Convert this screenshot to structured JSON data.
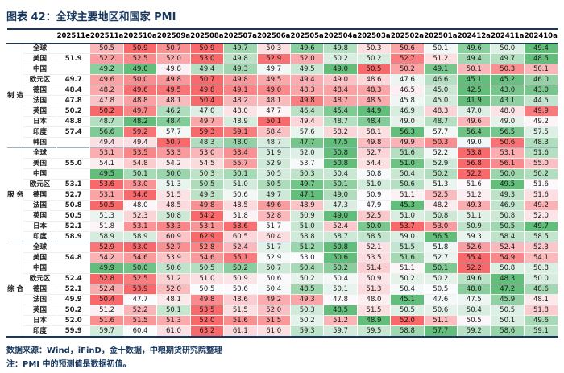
{
  "header": {
    "title": "图表 42：全球主要地区和国家 PMI"
  },
  "chart_data": {
    "type": "table",
    "title": "全球主要地区和国家 PMI",
    "legend": "heatmap per row: red = high PMI, green = low PMI, blue = flash/preliminary value",
    "columns": [
      "202511e",
      "202511a",
      "202510a",
      "202509a",
      "202508a",
      "202507a",
      "202506a",
      "202505a",
      "202504a",
      "202503a",
      "202502a",
      "202501a",
      "202412a",
      "202411a",
      "202410a"
    ],
    "color_scale": {
      "low": "#63BE7B",
      "mid": "#FCFCFF",
      "high": "#F8696B",
      "flash_text": "#2E74B5"
    },
    "sections": [
      {
        "label": "制造业",
        "rows": [
          {
            "name": "全球",
            "values": [
              null,
              50.5,
              50.9,
              50.7,
              50.9,
              49.7,
              50.3,
              49.6,
              49.8,
              50.3,
              50.6,
              50.1,
              49.6,
              50.0,
              49.4
            ]
          },
          {
            "name": "美国",
            "values": [
              51.9,
              52.2,
              52.5,
              52.0,
              53.0,
              49.8,
              52.9,
              52.0,
              50.2,
              50.2,
              52.7,
              51.2,
              49.4,
              49.7,
              48.5
            ]
          },
          {
            "name": "中国",
            "values": [
              null,
              49.2,
              49.0,
              49.8,
              49.4,
              49.3,
              49.7,
              49.5,
              49.0,
              50.5,
              50.2,
              49.1,
              50.1,
              50.3,
              50.1
            ]
          },
          {
            "name": "欧元区",
            "values": [
              49.7,
              49.6,
              50.0,
              49.8,
              50.7,
              49.8,
              49.5,
              49.4,
              49.0,
              48.6,
              47.6,
              46.6,
              45.1,
              45.2,
              46.0
            ]
          },
          {
            "name": "德国",
            "values": [
              48.4,
              48.2,
              49.6,
              49.5,
              49.8,
              49.1,
              49.0,
              48.3,
              48.4,
              48.3,
              46.5,
              45.0,
              42.5,
              43.0,
              43.0
            ]
          },
          {
            "name": "法国",
            "values": [
              47.8,
              47.8,
              48.8,
              48.1,
              50.4,
              48.2,
              48.1,
              49.8,
              48.7,
              48.5,
              45.8,
              45.0,
              41.9,
              43.1,
              44.5
            ]
          },
          {
            "name": "英国",
            "values": [
              50.2,
              50.2,
              49.7,
              46.2,
              47.0,
              48.0,
              47.7,
              46.4,
              45.4,
              44.9,
              46.9,
              48.3,
              47.0,
              48.0,
              49.9
            ]
          },
          {
            "name": "日本",
            "values": [
              48.8,
              48.7,
              48.2,
              48.4,
              49.7,
              48.9,
              50.1,
              49.4,
              48.7,
              48.4,
              49.0,
              48.7,
              49.6,
              49.0,
              49.2
            ]
          },
          {
            "name": "印度",
            "values": [
              57.4,
              56.6,
              59.2,
              57.7,
              59.3,
              59.1,
              58.4,
              57.6,
              58.2,
              58.1,
              56.3,
              57.7,
              56.4,
              56.5,
              57.5
            ]
          },
          {
            "name": "韩国",
            "values": [
              null,
              49.4,
              49.4,
              50.7,
              48.3,
              48.0,
              48.7,
              47.7,
              47.5,
              49.8,
              49.9,
              50.3,
              49.0,
              50.6,
              48.3
            ]
          }
        ]
      },
      {
        "label": "服务业",
        "rows": [
          {
            "name": "全球",
            "values": [
              null,
              53.1,
              53.5,
              53.3,
              53.0,
              53.4,
              51.9,
              52.0,
              50.8,
              52.7,
              51.6,
              52.2,
              53.8,
              53.1,
              51.6
            ]
          },
          {
            "name": "美国",
            "values": [
              55.0,
              54.1,
              54.8,
              54.2,
              54.5,
              55.7,
              52.9,
              53.7,
              50.8,
              54.4,
              51.0,
              52.9,
              56.8,
              56.1,
              55.0
            ]
          },
          {
            "name": "中国",
            "values": [
              null,
              49.5,
              50.1,
              50.0,
              50.3,
              50.1,
              50.5,
              50.3,
              50.4,
              50.8,
              50.4,
              50.2,
              52.2,
              50.0,
              50.2
            ]
          },
          {
            "name": "欧元区",
            "values": [
              53.1,
              53.6,
              53.0,
              51.3,
              50.5,
              51.0,
              50.5,
              49.7,
              50.1,
              51.0,
              50.6,
              51.3,
              51.6,
              49.5,
              51.6
            ]
          },
          {
            "name": "德国",
            "values": [
              52.7,
              53.1,
              54.6,
              51.5,
              49.3,
              50.6,
              49.7,
              47.1,
              49.0,
              50.9,
              51.1,
              52.5,
              51.2,
              49.3,
              51.6
            ]
          },
          {
            "name": "法国",
            "values": [
              50.8,
              50.5,
              48.0,
              48.5,
              49.8,
              48.5,
              49.6,
              48.9,
              47.3,
              47.9,
              45.3,
              48.2,
              49.3,
              46.9,
              49.2
            ]
          },
          {
            "name": "英国",
            "values": [
              50.5,
              51.3,
              52.3,
              50.8,
              54.2,
              51.8,
              52.8,
              50.9,
              49.0,
              52.5,
              51.0,
              50.8,
              51.1,
              50.8,
              52.0
            ]
          },
          {
            "name": "日本",
            "values": [
              52.1,
              51.8,
              53.1,
              53.3,
              53.1,
              53.6,
              51.7,
              51.0,
              52.4,
              50.0,
              53.7,
              53.0,
              50.9,
              50.5,
              49.7
            ]
          },
          {
            "name": "印度",
            "values": [
              58.9,
              58.9,
              58.9,
              60.9,
              62.9,
              60.5,
              60.4,
              58.8,
              58.7,
              58.5,
              59.0,
              56.5,
              59.3,
              58.4,
              58.5
            ]
          }
        ]
      },
      {
        "label": "综合",
        "rows": [
          {
            "name": "全球",
            "values": [
              null,
              52.9,
              53.0,
              52.7,
              52.8,
              52.4,
              51.7,
              51.2,
              50.8,
              52.1,
              51.5,
              51.8,
              52.6,
              52.4,
              52.3
            ]
          },
          {
            "name": "美国",
            "values": [
              54.8,
              54.2,
              54.6,
              53.9,
              54.6,
              55.1,
              52.9,
              53.0,
              50.6,
              53.5,
              51.6,
              52.7,
              55.4,
              54.9,
              54.1
            ]
          },
          {
            "name": "中国",
            "values": [
              null,
              49.9,
              50.0,
              50.6,
              50.5,
              50.2,
              50.7,
              50.4,
              50.2,
              51.4,
              51.1,
              50.1,
              52.2,
              50.8,
              50.8
            ]
          },
          {
            "name": "欧元区",
            "values": [
              52.4,
              52.8,
              52.5,
              51.2,
              51.0,
              50.9,
              50.6,
              50.2,
              50.4,
              50.9,
              50.2,
              50.2,
              49.6,
              48.3,
              50.0
            ]
          },
          {
            "name": "德国",
            "values": [
              52.1,
              52.4,
              53.9,
              52.0,
              50.5,
              50.6,
              50.4,
              48.5,
              50.1,
              51.3,
              50.4,
              50.5,
              48.0,
              47.2,
              48.6
            ]
          },
          {
            "name": "法国",
            "values": [
              49.9,
              50.4,
              47.7,
              48.1,
              49.8,
              48.6,
              49.2,
              49.3,
              47.8,
              48.0,
              45.1,
              47.6,
              47.5,
              45.9,
              48.1
            ]
          },
          {
            "name": "英国",
            "values": [
              50.2,
              51.2,
              52.2,
              50.1,
              53.5,
              51.5,
              52.0,
              50.3,
              48.5,
              51.5,
              50.5,
              50.6,
              50.4,
              50.5,
              51.8
            ]
          },
          {
            "name": "日本",
            "values": [
              52.0,
              51.6,
              51.5,
              51.3,
              52.0,
              51.6,
              51.5,
              50.2,
              51.2,
              48.9,
              52.0,
              51.1,
              50.5,
              50.1,
              49.6
            ]
          },
          {
            "name": "印度",
            "values": [
              59.9,
              59.7,
              60.4,
              61.0,
              63.2,
              61.1,
              61.0,
              59.3,
              59.7,
              59.5,
              58.8,
              57.7,
              59.2,
              58.6,
              59.1
            ]
          }
        ]
      }
    ]
  },
  "footer": {
    "source": "数据来源：Wind，iFinD，金十数据，中粮期货研究院整理",
    "note": "注：PMI 中的预测值是数据初值。"
  }
}
